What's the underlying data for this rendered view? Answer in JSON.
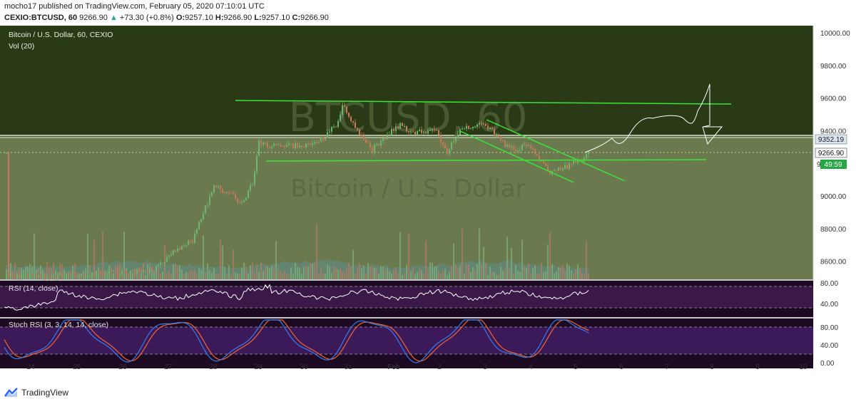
{
  "header": {
    "published": "mocho17 published on TradingView.com, February 05, 2020 07:10:01 UTC",
    "symbol": "CEXIO:BTCUSD, 60",
    "last": "9266.90",
    "change": "+73.30 (+0.8%)",
    "o_label": "O:",
    "o": "9257.10",
    "h_label": "H:",
    "h": "9266.90",
    "l_label": "L:",
    "l": "9257.10",
    "c_label": "C:",
    "c": "9266.90",
    "up_arrow": "▲"
  },
  "main_pane": {
    "title": "Bitcoin / U.S. Dollar, 60, CEXIO",
    "vol_label": "Vol (20)",
    "watermark_symbol": "BTCUSD, 60",
    "watermark_name": "Bitcoin / U.S. Dollar",
    "price_ticks": [
      "10000.00",
      "9800.00",
      "9600.00",
      "9400.00",
      "9000.00",
      "8800.00",
      "8600.00"
    ],
    "price_tick_values": [
      10000,
      9800,
      9600,
      9400,
      9000,
      8800,
      8600
    ],
    "badge_resistance": "9352.19",
    "badge_last": "9266.90",
    "badge_timer": "49:59",
    "badge_partial": "9"
  },
  "rsi_pane": {
    "title": "RSI (14, close)",
    "ticks": [
      "80.00",
      "40.00"
    ]
  },
  "stoch_pane": {
    "title": "Stoch RSI (3, 3, 14, 14, close)",
    "ticks": [
      "80.00",
      "40.00",
      "0.00"
    ]
  },
  "time_axis": [
    "24",
    "25",
    "26",
    "27",
    "28",
    "29",
    "30",
    "31",
    "Feb",
    "2",
    "3",
    "4",
    "5",
    "6",
    "7",
    "8",
    "9",
    "10"
  ],
  "footer": {
    "brand": "TradingView"
  },
  "colors": {
    "upper_zone": "#2a3a16",
    "lower_zone": "#6b7a4e",
    "trendline": "#39e639",
    "pane_bg": "#2a0f32",
    "candle_up": "#6fb56f",
    "candle_down": "#c77a5a",
    "rsi_line": "#ffffff",
    "stoch_k": "#2f7df0",
    "stoch_d": "#f0632f"
  }
}
